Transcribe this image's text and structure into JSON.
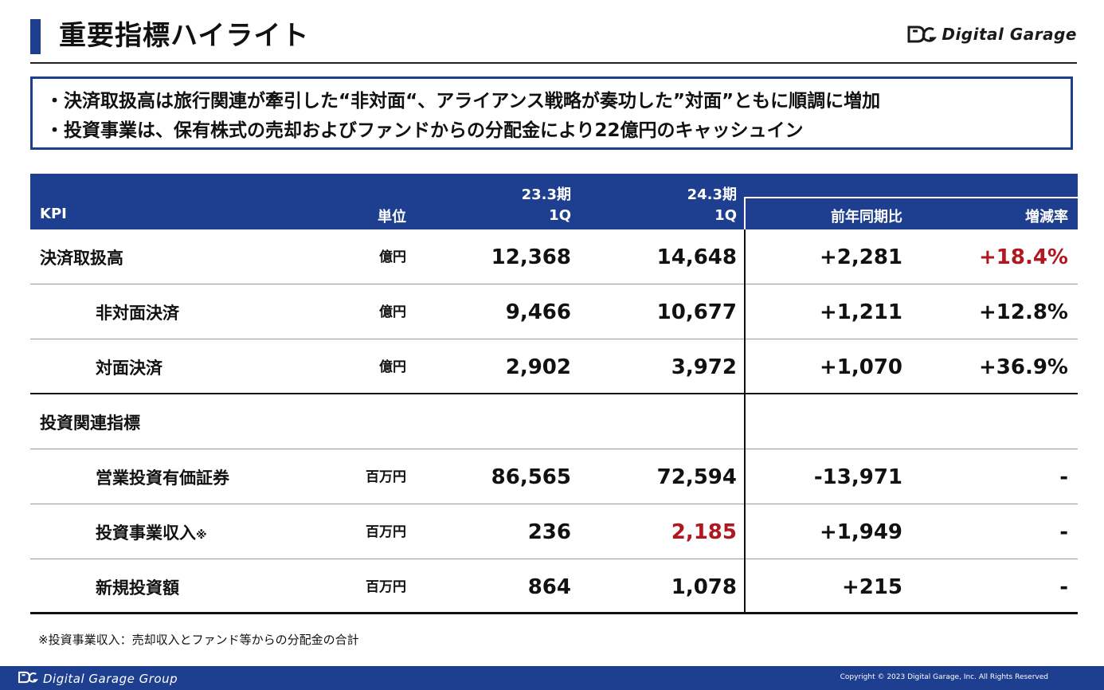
{
  "header": {
    "title": "重要指標ハイライト",
    "logo_text": "Digital Garage",
    "logo_icon": "dg-logo-icon"
  },
  "summary": {
    "lines": [
      "・決済取扱高は旅行関連が牽引した“非対面“、アライアンス戦略が奏功した”対面”ともに順調に増加",
      "・投資事業は、保有株式の売却およびファンドからの分配金により22億円のキャッシュイン"
    ]
  },
  "table": {
    "headers": {
      "kpi": "KPI",
      "unit": "単位",
      "period1_line1": "23.3期",
      "period1_line2": "1Q",
      "period2_line1": "24.3期",
      "period2_line2": "1Q",
      "yoy": "前年同期比",
      "rate": "増減率"
    },
    "rows": [
      {
        "label": "決済取扱高",
        "unit": "億円",
        "p1": "12,368",
        "p2": "14,648",
        "yoy": "+2,281",
        "rate": "+18.4%"
      },
      {
        "label": "非対面決済",
        "unit": "億円",
        "p1": "9,466",
        "p2": "10,677",
        "yoy": "+1,211",
        "rate": "+12.8%"
      },
      {
        "label": "対面決済",
        "unit": "億円",
        "p1": "2,902",
        "p2": "3,972",
        "yoy": "+1,070",
        "rate": "+36.9%"
      },
      {
        "label": "投資関連指標",
        "unit": "",
        "p1": "",
        "p2": "",
        "yoy": "",
        "rate": ""
      },
      {
        "label": "営業投資有価証券",
        "unit": "百万円",
        "p1": "86,565",
        "p2": "72,594",
        "yoy": "-13,971",
        "rate": "-"
      },
      {
        "label": "投資事業収入",
        "label_mark": "※",
        "unit": "百万円",
        "p1": "236",
        "p2": "2,185",
        "yoy": "+1,949",
        "rate": "-"
      },
      {
        "label": "新規投資額",
        "unit": "百万円",
        "p1": "864",
        "p2": "1,078",
        "yoy": "+215",
        "rate": "-"
      }
    ]
  },
  "footnote": "※投資事業収入：売却収入とファンド等からの分配金の合計",
  "footer": {
    "logo_text": "Digital Garage Group",
    "copyright": "Copyright © 2023 Digital Garage, Inc. All Rights Reserved"
  },
  "colors": {
    "brand_blue": "#1e3f8f",
    "highlight_red": "#b0171f"
  }
}
